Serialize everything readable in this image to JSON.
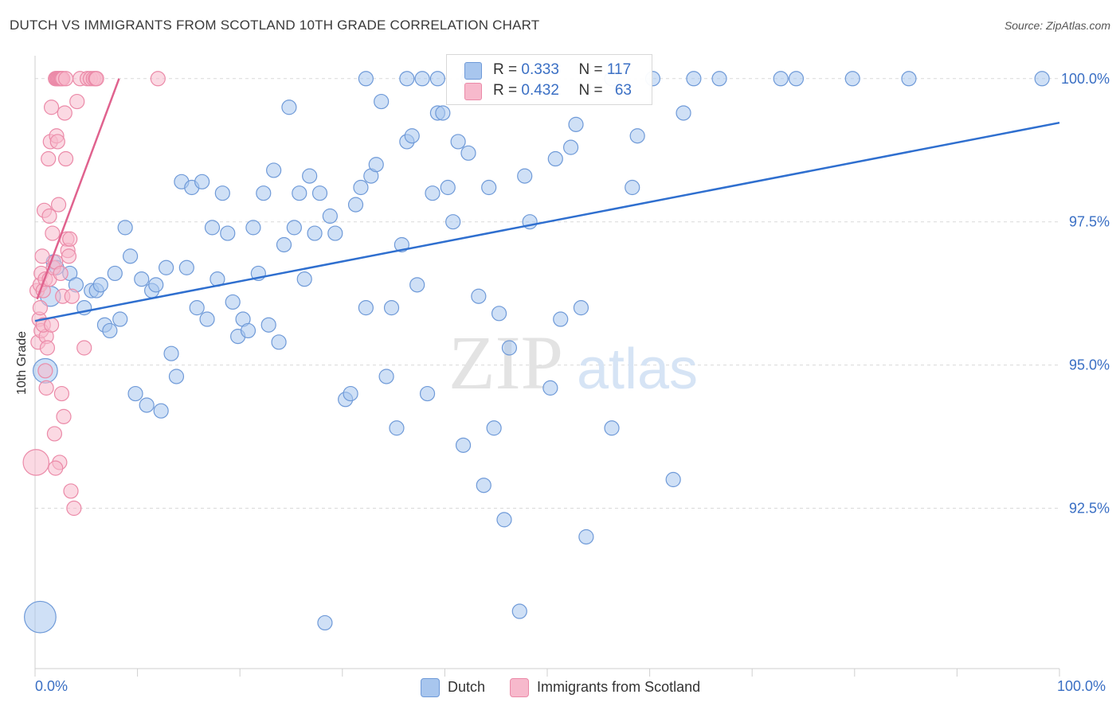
{
  "title": "DUTCH VS IMMIGRANTS FROM SCOTLAND 10TH GRADE CORRELATION CHART",
  "source": "Source: ZipAtlas.com",
  "watermark": {
    "zip": "ZIP",
    "atlas": "atlas"
  },
  "legend_top": {
    "rows": [
      {
        "r_label": "R = ",
        "r_value": "0.333",
        "n_label": "N = ",
        "n_value": "117"
      },
      {
        "r_label": "R = ",
        "r_value": "0.432",
        "n_label": "N = ",
        "n_value": "63"
      }
    ]
  },
  "colors": {
    "dutch_fill": "#a8c6ee",
    "dutch_stroke": "#6f9ad8",
    "dutch_line": "#2f6fcf",
    "scot_fill": "#f7b9cc",
    "scot_stroke": "#eb8aa8",
    "scot_line": "#e0628e",
    "axis_text": "#3a6fc4",
    "grid": "#d9d9d9"
  },
  "chart_data": {
    "type": "scatter",
    "title": "DUTCH VS IMMIGRANTS FROM SCOTLAND 10TH GRADE CORRELATION CHART",
    "xlabel": "",
    "ylabel": "10th Grade",
    "xlim": [
      0,
      100
    ],
    "ylim": [
      89.7,
      100.4
    ],
    "x_tick_labels": [
      "0.0%",
      "100.0%"
    ],
    "y_ticks": [
      92.5,
      95.0,
      97.5,
      100.0
    ],
    "y_tick_labels": [
      "92.5%",
      "95.0%",
      "97.5%",
      "100.0%"
    ],
    "grid": true,
    "legend_position": "bottom-center",
    "series": [
      {
        "name": "Dutch",
        "r": 0.333,
        "n": 117,
        "trend": {
          "x": [
            0,
            100
          ],
          "y": [
            95.77,
            99.23
          ]
        },
        "points": [
          [
            0.5,
            90.6,
            2.2
          ],
          [
            1.0,
            94.9,
            1.7
          ],
          [
            1.5,
            96.2,
            1.4
          ],
          [
            1.8,
            96.8,
            1
          ],
          [
            2.1,
            96.7,
            1
          ],
          [
            3.4,
            96.6,
            1
          ],
          [
            4.0,
            96.4,
            1
          ],
          [
            4.8,
            96.0,
            1
          ],
          [
            5.5,
            96.3,
            1
          ],
          [
            6.0,
            96.3,
            1
          ],
          [
            6.4,
            96.4,
            1
          ],
          [
            6.8,
            95.7,
            1
          ],
          [
            7.3,
            95.6,
            1
          ],
          [
            7.8,
            96.6,
            1
          ],
          [
            8.3,
            95.8,
            1
          ],
          [
            8.8,
            97.4,
            1
          ],
          [
            9.3,
            96.9,
            1
          ],
          [
            9.8,
            94.5,
            1
          ],
          [
            10.4,
            96.5,
            1
          ],
          [
            10.9,
            94.3,
            1
          ],
          [
            11.4,
            96.3,
            1
          ],
          [
            11.8,
            96.4,
            1
          ],
          [
            12.3,
            94.2,
            1
          ],
          [
            12.8,
            96.7,
            1
          ],
          [
            13.3,
            95.2,
            1
          ],
          [
            13.8,
            94.8,
            1
          ],
          [
            14.3,
            98.2,
            1
          ],
          [
            14.8,
            96.7,
            1
          ],
          [
            15.3,
            98.1,
            1
          ],
          [
            15.8,
            96.0,
            1
          ],
          [
            16.3,
            98.2,
            1
          ],
          [
            16.8,
            95.8,
            1
          ],
          [
            17.3,
            97.4,
            1
          ],
          [
            17.8,
            96.5,
            1
          ],
          [
            18.3,
            98.0,
            1
          ],
          [
            18.8,
            97.3,
            1
          ],
          [
            19.3,
            96.1,
            1
          ],
          [
            19.8,
            95.5,
            1
          ],
          [
            20.3,
            95.8,
            1
          ],
          [
            20.8,
            95.6,
            1
          ],
          [
            21.3,
            97.4,
            1
          ],
          [
            21.8,
            96.6,
            1
          ],
          [
            22.3,
            98.0,
            1
          ],
          [
            22.8,
            95.7,
            1
          ],
          [
            23.3,
            98.4,
            1
          ],
          [
            23.8,
            95.4,
            1
          ],
          [
            24.3,
            97.1,
            1
          ],
          [
            24.8,
            99.5,
            1
          ],
          [
            25.3,
            97.4,
            1
          ],
          [
            25.8,
            98.0,
            1
          ],
          [
            26.3,
            96.5,
            1
          ],
          [
            26.8,
            98.3,
            1
          ],
          [
            27.3,
            97.3,
            1
          ],
          [
            27.8,
            98.0,
            1
          ],
          [
            28.3,
            90.5,
            1
          ],
          [
            28.8,
            97.6,
            1
          ],
          [
            29.3,
            97.3,
            1
          ],
          [
            30.3,
            94.4,
            1
          ],
          [
            30.8,
            94.5,
            1
          ],
          [
            31.3,
            97.8,
            1
          ],
          [
            31.8,
            98.1,
            1
          ],
          [
            32.3,
            96.0,
            1
          ],
          [
            32.8,
            98.3,
            1
          ],
          [
            33.3,
            98.5,
            1
          ],
          [
            33.8,
            99.6,
            1
          ],
          [
            34.3,
            94.8,
            1
          ],
          [
            34.8,
            96.0,
            1
          ],
          [
            35.3,
            93.9,
            1
          ],
          [
            35.8,
            97.1,
            1
          ],
          [
            36.3,
            98.9,
            1
          ],
          [
            36.8,
            99.0,
            1
          ],
          [
            37.3,
            96.4,
            1
          ],
          [
            37.8,
            100.0,
            1
          ],
          [
            38.3,
            94.5,
            1
          ],
          [
            38.8,
            98.0,
            1
          ],
          [
            39.3,
            99.4,
            1
          ],
          [
            39.8,
            99.4,
            1
          ],
          [
            40.3,
            98.1,
            1
          ],
          [
            40.8,
            97.5,
            1
          ],
          [
            41.3,
            98.9,
            1
          ],
          [
            41.8,
            93.6,
            1
          ],
          [
            42.3,
            98.7,
            1
          ],
          [
            43.3,
            96.2,
            1
          ],
          [
            43.8,
            92.9,
            1
          ],
          [
            44.3,
            98.1,
            1
          ],
          [
            44.8,
            93.9,
            1
          ],
          [
            45.3,
            95.9,
            1
          ],
          [
            45.8,
            92.3,
            1
          ],
          [
            46.3,
            95.3,
            1
          ],
          [
            47.3,
            90.7,
            1
          ],
          [
            47.8,
            98.3,
            1
          ],
          [
            48.3,
            97.5,
            1
          ],
          [
            50.3,
            94.6,
            1
          ],
          [
            50.8,
            98.6,
            1
          ],
          [
            51.3,
            95.8,
            1
          ],
          [
            52.3,
            98.8,
            1
          ],
          [
            52.8,
            99.2,
            1
          ],
          [
            53.3,
            96.0,
            1
          ],
          [
            53.8,
            92.0,
            1
          ],
          [
            56.3,
            93.9,
            1
          ],
          [
            58.3,
            98.1,
            1
          ],
          [
            58.8,
            99.0,
            1
          ],
          [
            60.3,
            100.0,
            1
          ],
          [
            62.3,
            93.0,
            1
          ],
          [
            63.3,
            99.4,
            1
          ],
          [
            64.3,
            100.0,
            1
          ],
          [
            66.8,
            100.0,
            1
          ],
          [
            72.8,
            100.0,
            1
          ],
          [
            74.3,
            100.0,
            1
          ],
          [
            79.8,
            100.0,
            1
          ],
          [
            85.3,
            100.0,
            1
          ],
          [
            98.3,
            100.0,
            1
          ],
          [
            56.3,
            100.0,
            1
          ],
          [
            42.3,
            100.0,
            1
          ],
          [
            39.3,
            100.0,
            1
          ],
          [
            36.3,
            100.0,
            1
          ],
          [
            32.3,
            100.0,
            1
          ]
        ]
      },
      {
        "name": "Immigrants from Scotland",
        "r": 0.432,
        "n": 63,
        "trend": {
          "x": [
            0.2,
            8.2
          ],
          "y": [
            96.15,
            100.0
          ]
        },
        "points": [
          [
            0.1,
            93.3,
            1.8
          ],
          [
            0.2,
            96.3,
            1
          ],
          [
            0.3,
            95.4,
            1
          ],
          [
            0.4,
            95.8,
            1
          ],
          [
            0.5,
            96.0,
            1
          ],
          [
            0.5,
            96.4,
            1
          ],
          [
            0.6,
            95.6,
            1
          ],
          [
            0.6,
            96.6,
            1
          ],
          [
            0.7,
            96.9,
            1
          ],
          [
            0.8,
            96.3,
            1
          ],
          [
            0.9,
            97.7,
            1
          ],
          [
            1.0,
            96.5,
            1
          ],
          [
            1.0,
            94.9,
            1
          ],
          [
            1.1,
            95.5,
            1
          ],
          [
            1.2,
            95.3,
            1
          ],
          [
            1.3,
            98.6,
            1
          ],
          [
            1.4,
            96.5,
            1
          ],
          [
            1.4,
            97.6,
            1
          ],
          [
            1.5,
            98.9,
            1
          ],
          [
            1.6,
            99.5,
            1
          ],
          [
            1.7,
            97.3,
            1
          ],
          [
            1.8,
            96.7,
            1
          ],
          [
            1.9,
            93.8,
            1
          ],
          [
            2.0,
            96.8,
            1
          ],
          [
            2.1,
            99.0,
            1
          ],
          [
            2.2,
            98.9,
            1
          ],
          [
            2.3,
            97.8,
            1
          ],
          [
            2.4,
            93.3,
            1
          ],
          [
            2.5,
            96.6,
            1
          ],
          [
            2.6,
            94.5,
            1
          ],
          [
            2.7,
            96.2,
            1
          ],
          [
            2.8,
            94.1,
            1
          ],
          [
            2.9,
            99.4,
            1
          ],
          [
            3.0,
            98.6,
            1
          ],
          [
            3.1,
            97.2,
            1
          ],
          [
            3.2,
            97.0,
            1
          ],
          [
            3.3,
            96.9,
            1
          ],
          [
            3.4,
            97.2,
            1
          ],
          [
            3.5,
            92.8,
            1
          ],
          [
            3.6,
            96.2,
            1
          ],
          [
            3.8,
            92.5,
            1
          ],
          [
            4.1,
            99.6,
            1
          ],
          [
            4.4,
            100.0,
            1
          ],
          [
            4.8,
            95.3,
            1
          ],
          [
            5.1,
            100.0,
            1
          ],
          [
            5.4,
            100.0,
            1
          ],
          [
            5.7,
            100.0,
            1
          ],
          [
            5.9,
            100.0,
            1
          ],
          [
            6.0,
            100.0,
            1
          ],
          [
            2.0,
            100.0,
            1
          ],
          [
            2.1,
            100.0,
            1
          ],
          [
            2.2,
            100.0,
            1
          ],
          [
            2.3,
            100.0,
            1
          ],
          [
            2.4,
            100.0,
            1
          ],
          [
            2.5,
            100.0,
            1
          ],
          [
            2.6,
            100.0,
            1
          ],
          [
            2.7,
            100.0,
            1
          ],
          [
            12.0,
            100.0,
            1
          ],
          [
            0.8,
            95.7,
            1
          ],
          [
            1.1,
            94.6,
            1
          ],
          [
            1.6,
            95.7,
            1
          ],
          [
            2.0,
            93.2,
            1
          ],
          [
            3.0,
            100.0,
            1
          ]
        ]
      }
    ]
  },
  "legend_bottom": [
    {
      "label": "Dutch"
    },
    {
      "label": "Immigrants from Scotland"
    }
  ]
}
